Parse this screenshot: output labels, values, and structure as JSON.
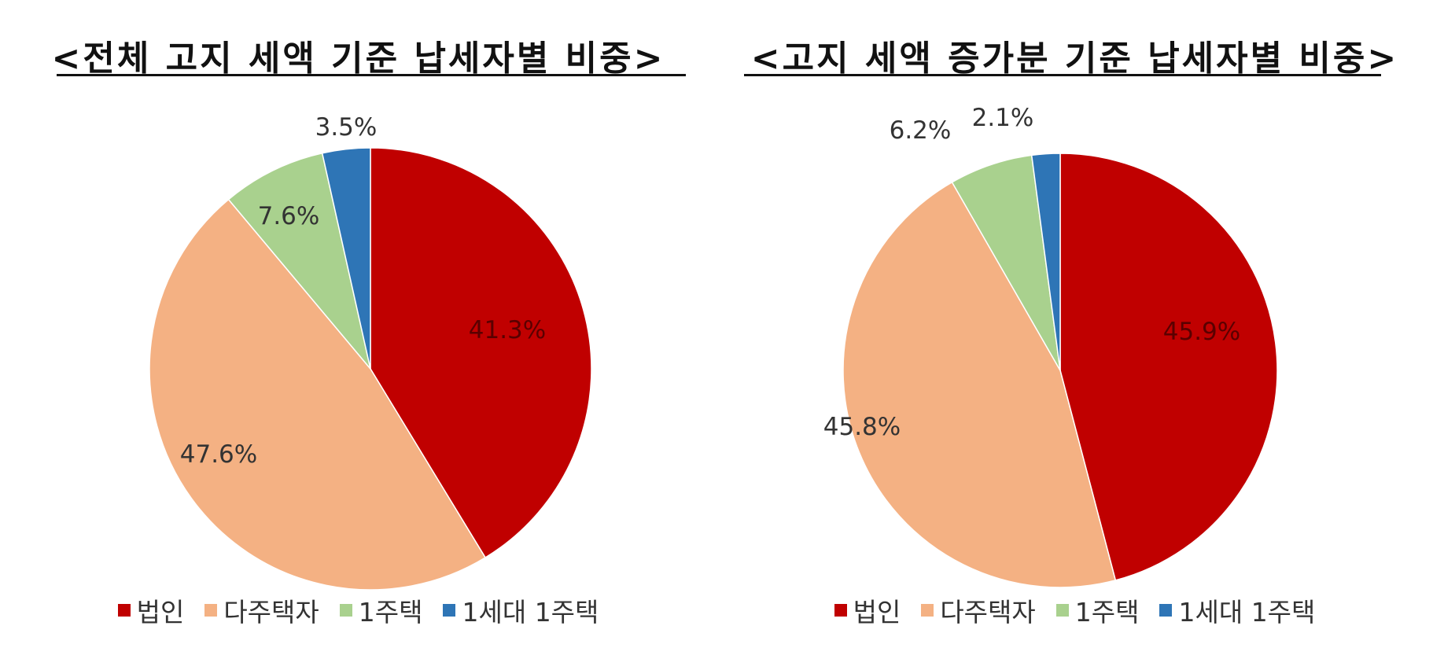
{
  "chart_data": [
    {
      "type": "pie",
      "title": "<전체 고지 세액 기준 납세자별 비중>",
      "categories": [
        "법인",
        "다주택자",
        "1주택",
        "1세대 1주택"
      ],
      "values": [
        41.3,
        47.6,
        7.6,
        3.5
      ],
      "labels": [
        "41.3%",
        "47.6%",
        "7.6%",
        "3.5%"
      ],
      "colors": [
        "#c00000",
        "#f4b183",
        "#a9d18e",
        "#2e75b6"
      ],
      "legend": "bottom"
    },
    {
      "type": "pie",
      "title": "<고지 세액 증가분 기준 납세자별 비중>",
      "categories": [
        "법인",
        "다주택자",
        "1주택",
        "1세대 1주택"
      ],
      "values": [
        45.9,
        45.8,
        6.2,
        2.1
      ],
      "labels": [
        "45.9%",
        "45.8%",
        "6.2%",
        "2.1%"
      ],
      "colors": [
        "#c00000",
        "#f4b183",
        "#a9d18e",
        "#2e75b6"
      ],
      "legend": "bottom"
    }
  ]
}
